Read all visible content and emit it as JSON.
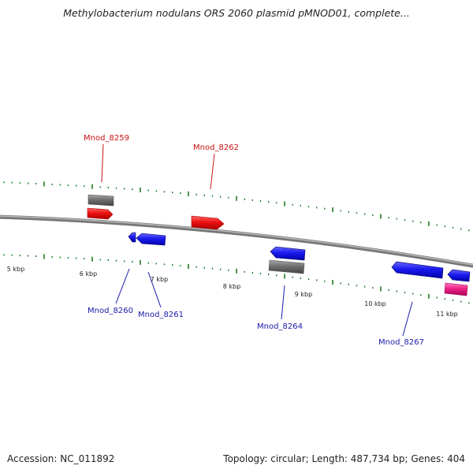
{
  "title": "Methylobacterium nodulans ORS 2060 plasmid pMNOD01, complete...",
  "footer": {
    "accession": "Accession: NC_011892",
    "stats": "Topology: circular; Length: 487,734 bp; Genes: 404"
  },
  "scale_labels": [
    "5 kbp",
    "6 kbp",
    "7 kbp",
    "8 kbp",
    "9 kbp",
    "10 kbp",
    "11 kbp"
  ],
  "colors": {
    "backbone": "#8a8a8a",
    "ticks": "#1e7a1e",
    "forward_label": "#cc1111",
    "reverse_label": "#1a1aaa",
    "forward_cds": "#ee1111",
    "reverse_cds": "#1a1aee",
    "pseudo": "#707070",
    "rna": "#ee2288"
  },
  "gene_labels": {
    "forward": [
      "Mnod_8259",
      "Mnod_8262"
    ],
    "reverse": [
      "Mnod_8260",
      "Mnod_8261",
      "Mnod_8264",
      "Mnod_8267"
    ]
  }
}
